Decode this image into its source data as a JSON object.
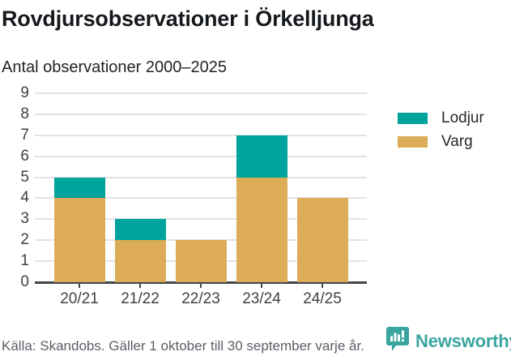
{
  "header": {
    "title": "Rovdjursobservationer i Örkelljunga",
    "subtitle": "Antal observationer 2000–2025"
  },
  "chart_data": {
    "type": "bar",
    "stacked": true,
    "title": "Rovdjursobservationer i Örkelljunga",
    "subtitle": "Antal observationer 2000–2025",
    "categories": [
      "20/21",
      "21/22",
      "22/23",
      "23/24",
      "24/25"
    ],
    "series": [
      {
        "name": "Varg",
        "color": "#dcac58",
        "values": [
          4,
          2,
          2,
          5,
          4
        ]
      },
      {
        "name": "Lodjur",
        "color": "#00a49c",
        "values": [
          1,
          1,
          0,
          2,
          0
        ]
      }
    ],
    "stack_order_bottom_to_top": [
      "Varg",
      "Lodjur"
    ],
    "ylim": [
      0,
      9
    ],
    "yticks": [
      0,
      1,
      2,
      3,
      4,
      5,
      6,
      7,
      8,
      9
    ],
    "grid": true,
    "legend_position": "right"
  },
  "legend": {
    "items": [
      {
        "label": "Lodjur",
        "color": "#00a49c"
      },
      {
        "label": "Varg",
        "color": "#dcac58"
      }
    ]
  },
  "footer": {
    "source": "Källa: Skandobs. Gäller 1 oktober till 30 september varje år.",
    "brand": "Newsworthy",
    "brand_color": "#3aa5a0"
  },
  "colors": {
    "lodjur": "#00a49c",
    "varg": "#dcac58",
    "grid": "#e3e3e3",
    "axis": "#43474b",
    "title_text": "#15181c",
    "muted_text": "#5a5f66"
  }
}
